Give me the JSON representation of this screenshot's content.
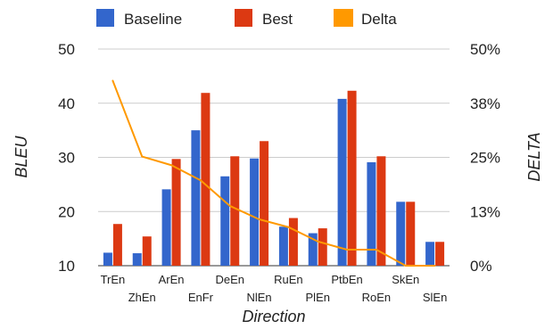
{
  "chart_data": {
    "type": "bar",
    "categories": [
      "TrEn",
      "ZhEn",
      "ArEn",
      "EnFr",
      "DeEn",
      "NlEn",
      "RuEn",
      "PlEn",
      "PtbEn",
      "RoEn",
      "SkEn",
      "SlEn"
    ],
    "series": [
      {
        "name": "Baseline",
        "type": "bar",
        "axis": "left",
        "color": "#3366cc",
        "values": [
          12.4,
          12.3,
          24.1,
          35.0,
          26.5,
          29.8,
          17.2,
          16.0,
          40.8,
          29.1,
          21.8,
          14.4
        ]
      },
      {
        "name": "Best",
        "type": "bar",
        "axis": "left",
        "color": "#dc3912",
        "values": [
          17.7,
          15.4,
          29.7,
          41.9,
          30.2,
          33.0,
          18.8,
          16.9,
          42.3,
          30.2,
          21.8,
          14.4
        ]
      },
      {
        "name": "Delta",
        "type": "line",
        "axis": "right",
        "color": "#ff9900",
        "values": [
          0.427,
          0.252,
          0.232,
          0.197,
          0.138,
          0.107,
          0.089,
          0.056,
          0.037,
          0.037,
          0.0,
          0.0
        ]
      }
    ],
    "xlabel": "Direction",
    "ylabel": "BLEU",
    "ylabel_right": "DELTA",
    "ylim": [
      10,
      50
    ],
    "ylim_right": [
      0,
      0.5
    ],
    "yticks": [
      "10",
      "20",
      "30",
      "40",
      "50"
    ],
    "yticks_right": [
      "0%",
      "13%",
      "25%",
      "38%",
      "50%"
    ],
    "legend": "top-left",
    "grid": true
  }
}
